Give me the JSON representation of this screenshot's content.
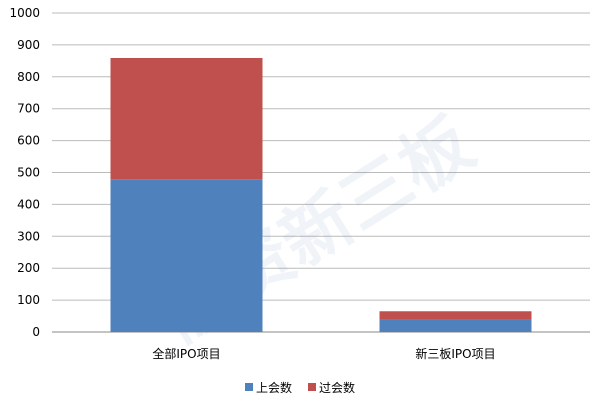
{
  "chart_data": {
    "type": "bar",
    "stacked": true,
    "categories": [
      "全部IPO项目",
      "新三板IPO项目"
    ],
    "series": [
      {
        "name": "上会数",
        "values": [
          479,
          38
        ],
        "color": "#4F81BD"
      },
      {
        "name": "过会数",
        "values": [
          380,
          27
        ],
        "color": "#C0504D"
      }
    ],
    "ylim": [
      0,
      1000
    ],
    "yticks": [
      0,
      100,
      200,
      300,
      400,
      500,
      600,
      700,
      800,
      900,
      1000
    ],
    "grid": true,
    "legend": "bottom",
    "watermark": "融资新三板"
  }
}
